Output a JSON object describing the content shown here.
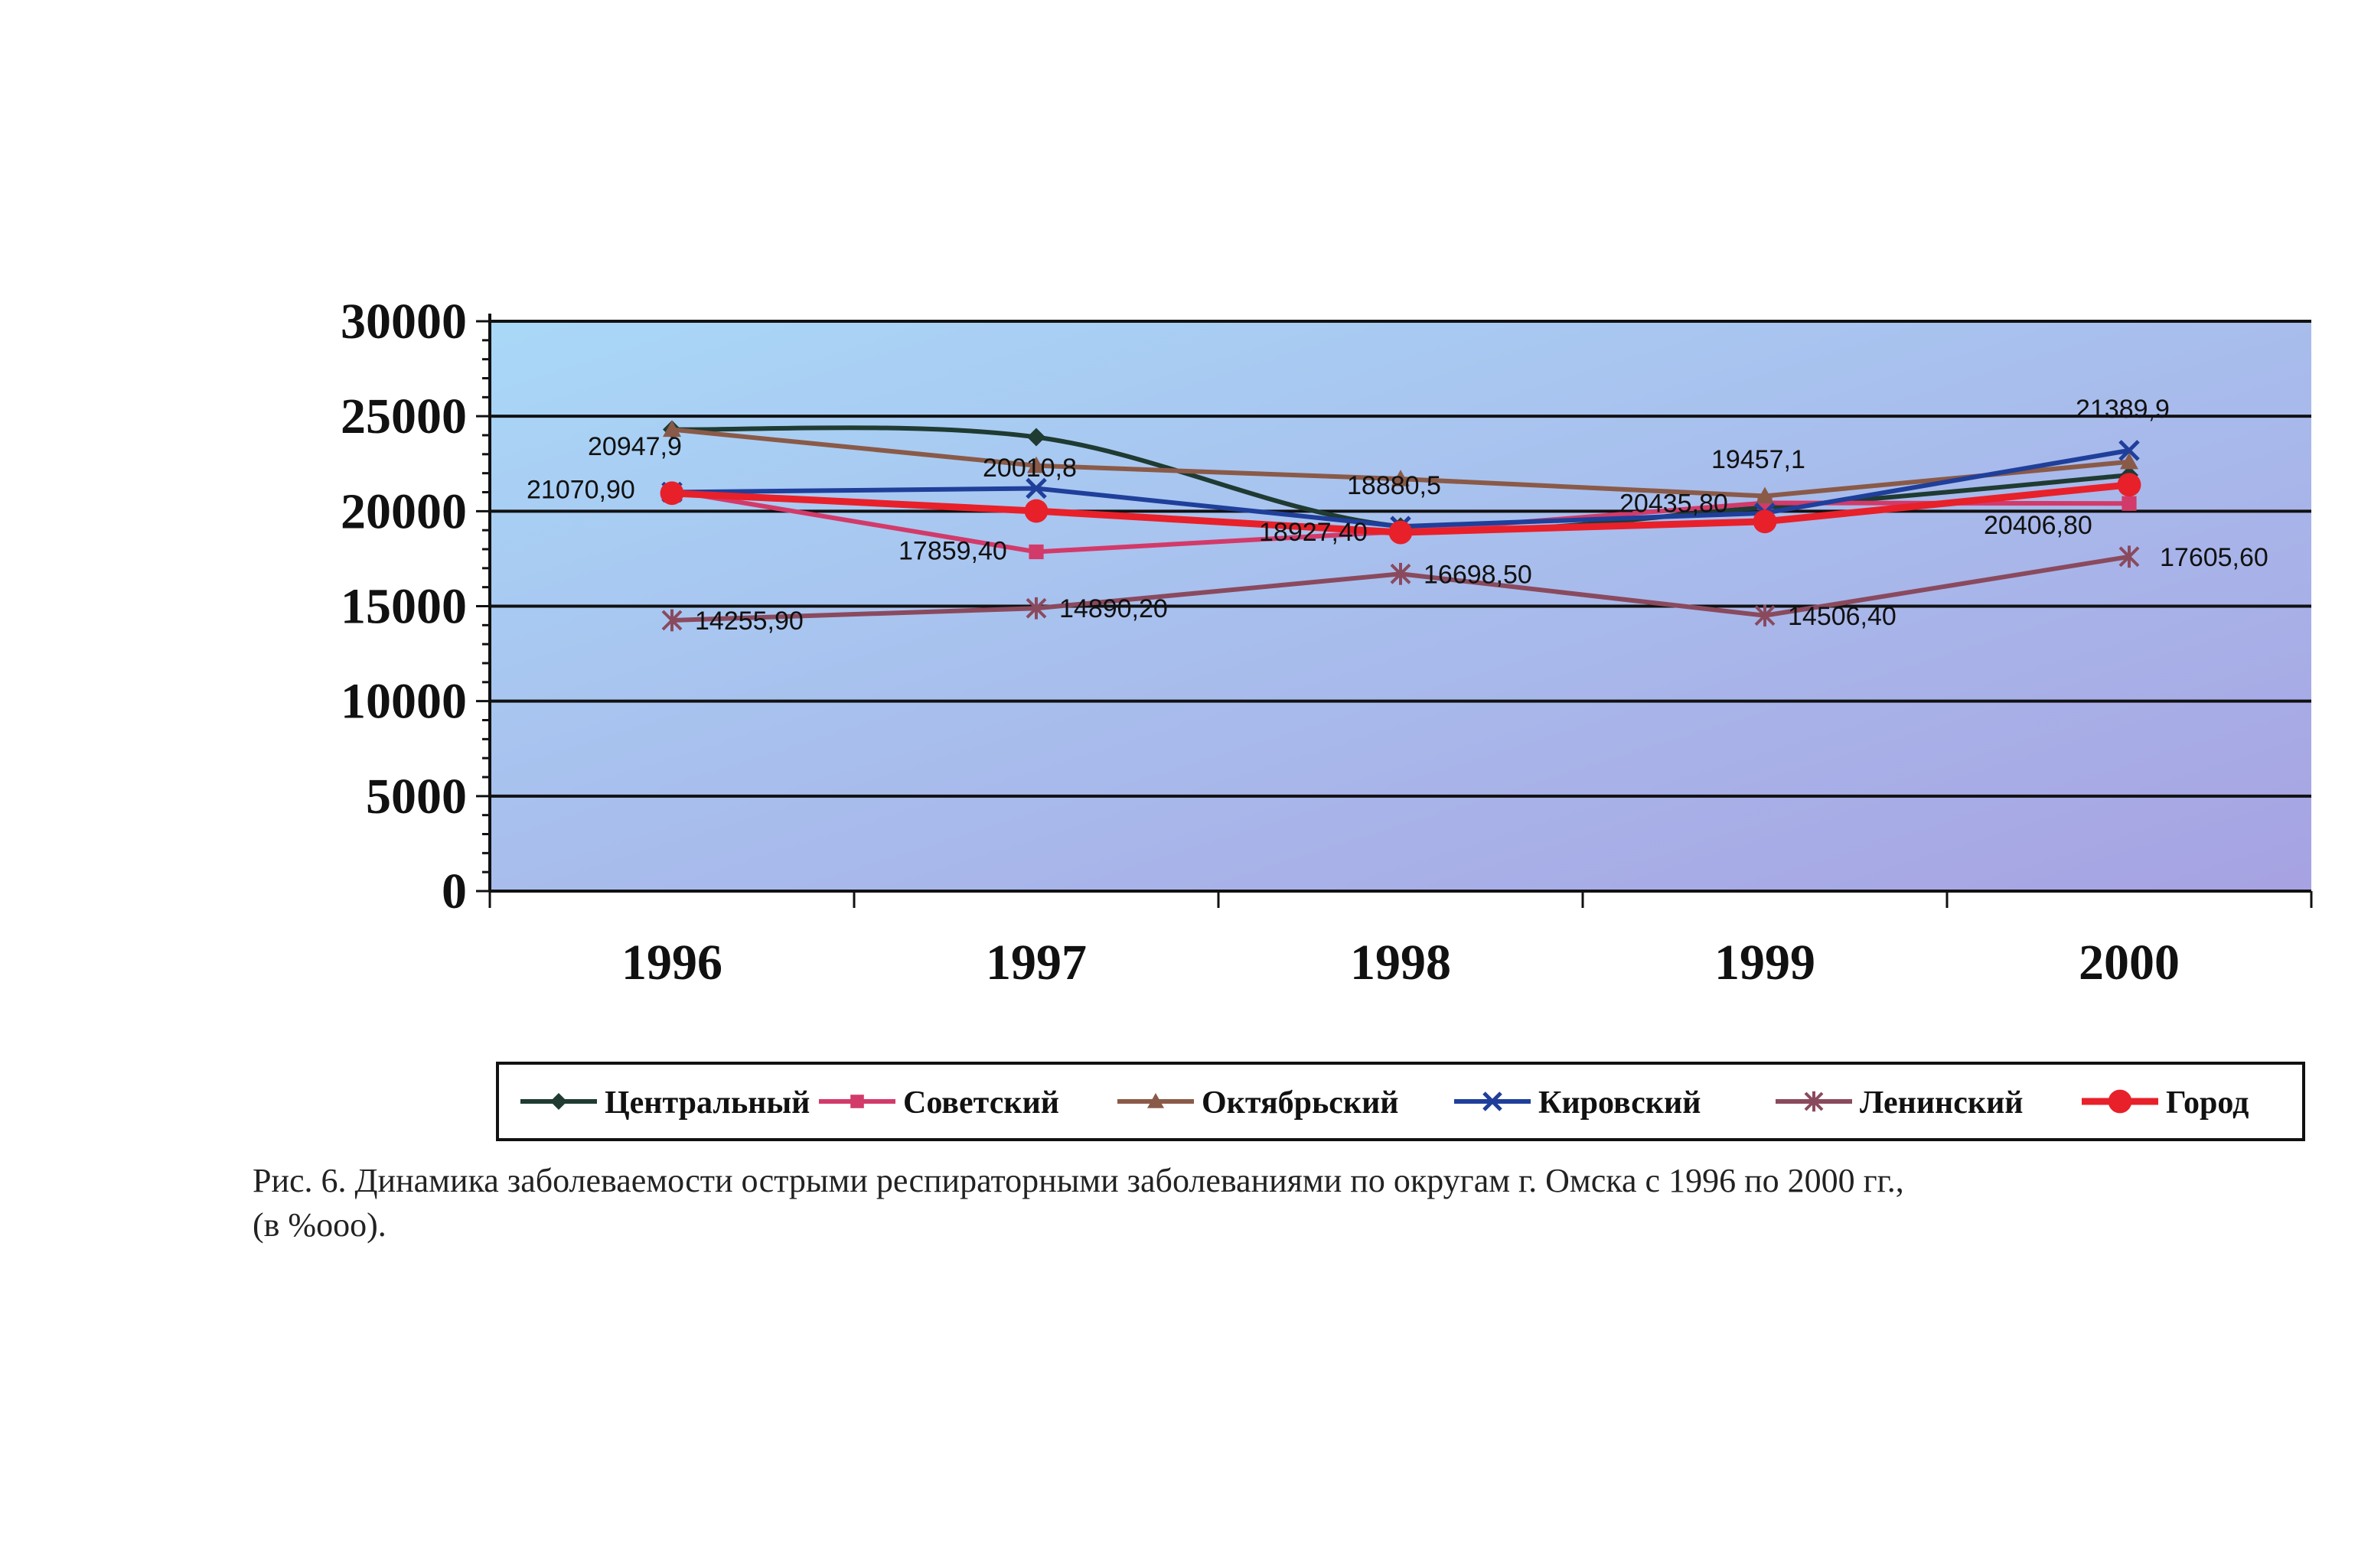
{
  "caption": {
    "line1": "Рис. 6. Динамика заболеваемости острыми респираторными заболеваниями по округам г. Омска с 1996 по 2000 гг.,",
    "line2": "(в %ооо)."
  },
  "chart_data": {
    "type": "line",
    "categories": [
      "1996",
      "1997",
      "1998",
      "1999",
      "2000"
    ],
    "ylim": [
      0,
      30000
    ],
    "yticks": [
      "0",
      "5000",
      "10000",
      "15000",
      "20000",
      "25000",
      "30000"
    ],
    "grid": true,
    "legend_position": "bottom",
    "plot_gradient": [
      "#a9d8f7",
      "#a7a2e2"
    ],
    "series": [
      {
        "name": "Центральный",
        "color": "#1f3b32",
        "marker": "diamond",
        "smooth": true,
        "values": [
          24300,
          23900,
          19200,
          20200,
          21900
        ]
      },
      {
        "name": "Советский",
        "color": "#d23a6a",
        "marker": "square",
        "smooth": false,
        "values": [
          21070.9,
          17859.4,
          18927.4,
          20435.8,
          20406.8
        ]
      },
      {
        "name": "Октябрьский",
        "color": "#8a5a48",
        "marker": "triangle",
        "smooth": false,
        "values": [
          24300,
          22400,
          21700,
          20800,
          22600
        ]
      },
      {
        "name": "Кировский",
        "color": "#1f3f9a",
        "marker": "x",
        "smooth": false,
        "values": [
          21000,
          21200,
          19200,
          19900,
          23200
        ]
      },
      {
        "name": "Ленинский",
        "color": "#8a4a5e",
        "marker": "star",
        "smooth": false,
        "values": [
          14255.9,
          14890.2,
          16698.5,
          14506.4,
          17605.6
        ]
      },
      {
        "name": "Город",
        "color": "#e8202a",
        "marker": "circle",
        "smooth": false,
        "values": [
          20947.9,
          20010.8,
          18880.5,
          19457.1,
          21389.9
        ]
      }
    ],
    "data_labels": [
      {
        "text": "20947,9",
        "cat": 0,
        "value": 20947.9,
        "dx": -110,
        "dy": -50
      },
      {
        "text": "21070,90",
        "cat": 0,
        "value": 21070.9,
        "dx": -190,
        "dy": 10
      },
      {
        "text": "14255,90",
        "cat": 0,
        "value": 14255.9,
        "dx": 30,
        "dy": 12
      },
      {
        "text": "20010,8",
        "cat": 1,
        "value": 20010.8,
        "dx": -70,
        "dy": -45
      },
      {
        "text": "17859,40",
        "cat": 1,
        "value": 17859.4,
        "dx": -180,
        "dy": 10
      },
      {
        "text": "14890,20",
        "cat": 1,
        "value": 14890.2,
        "dx": 30,
        "dy": 12
      },
      {
        "text": "18880,5",
        "cat": 2,
        "value": 18880.5,
        "dx": -70,
        "dy": -50
      },
      {
        "text": "18927,40",
        "cat": 2,
        "value": 18927.4,
        "dx": -185,
        "dy": 12
      },
      {
        "text": "16698,50",
        "cat": 2,
        "value": 16698.5,
        "dx": 30,
        "dy": 12
      },
      {
        "text": "19457,1",
        "cat": 3,
        "value": 19457.1,
        "dx": -70,
        "dy": -70
      },
      {
        "text": "20435,80",
        "cat": 3,
        "value": 20435.8,
        "dx": -190,
        "dy": 12
      },
      {
        "text": "14506,40",
        "cat": 3,
        "value": 14506.4,
        "dx": 30,
        "dy": 12
      },
      {
        "text": "21389,9",
        "cat": 4,
        "value": 21389.9,
        "dx": -70,
        "dy": -88
      },
      {
        "text": "20406,80",
        "cat": 4,
        "value": 20406.8,
        "dx": -190,
        "dy": 40
      },
      {
        "text": "17605,60",
        "cat": 4,
        "value": 17605.6,
        "dx": 40,
        "dy": 12
      }
    ]
  }
}
